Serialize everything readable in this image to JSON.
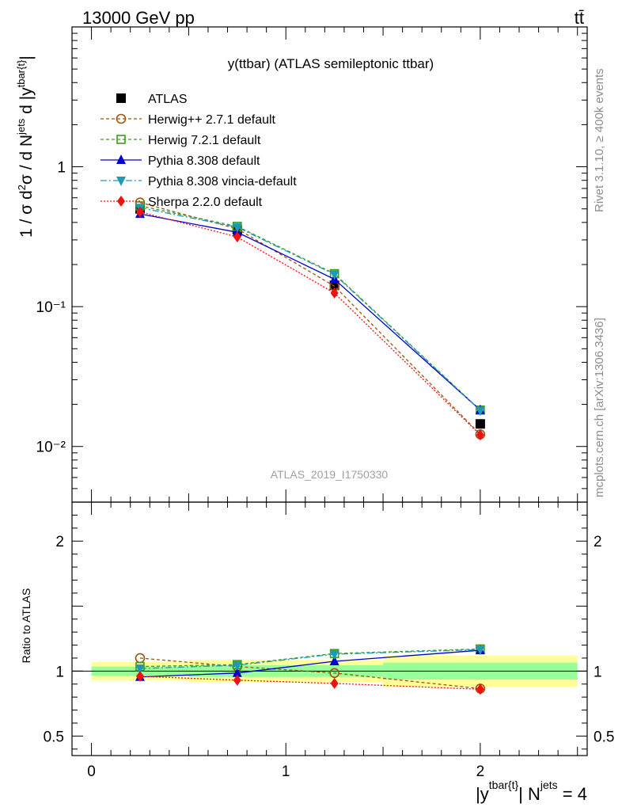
{
  "header": {
    "energy_label": "13000 GeV pp",
    "process_label": "tt̄",
    "plot_title": "y(ttbar) (ATLAS semileptonic ttbar)",
    "side_rivet": "Rivet 3.1.10, ≥ 400k events",
    "side_mcplots": "mcplots.cern.ch [arXiv:1306.3436]",
    "analysis_id": "ATLAS_2019_I1750330"
  },
  "chart_data": [
    {
      "type": "line",
      "scale": "log",
      "ylabel": "1 / σ d²σ / d N^jets d |y^tbar{t}|",
      "ylim": [
        0.004,
        10
      ],
      "xlim": [
        -0.1,
        2.55
      ],
      "y_ticks": [
        {
          "value": 1,
          "label": "1"
        },
        {
          "value": 0.1,
          "label": "10⁻¹"
        },
        {
          "value": 0.01,
          "label": "10⁻²"
        }
      ],
      "x": [
        0.25,
        0.75,
        1.25,
        2.0
      ],
      "legend_position": "top-left",
      "series": [
        {
          "name": "ATLAS",
          "color": "#000000",
          "marker": "square-filled",
          "dash": "none",
          "values": [
            0.5,
            0.355,
            0.142,
            0.0145
          ]
        },
        {
          "name": "Herwig++ 2.7.1 default",
          "color": "#a0520f",
          "marker": "circle-open",
          "dash": "4,3",
          "values": [
            0.555,
            0.36,
            0.14,
            0.0122
          ]
        },
        {
          "name": "Herwig 7.2.1 default",
          "color": "#3e9a1a",
          "marker": "square-open",
          "dash": "4,3",
          "values": [
            0.525,
            0.375,
            0.172,
            0.0182
          ]
        },
        {
          "name": "Pythia 8.308 default",
          "color": "#0000cc",
          "marker": "triangle-up",
          "dash": "none",
          "values": [
            0.46,
            0.34,
            0.157,
            0.0182
          ]
        },
        {
          "name": "Pythia 8.308 vincia-default",
          "color": "#1e9ab5",
          "marker": "triangle-down",
          "dash": "8,3,2,3",
          "values": [
            0.51,
            0.37,
            0.17,
            0.0181
          ]
        },
        {
          "name": "Sherpa 2.2.0 default",
          "color": "#ee1111",
          "marker": "diamond",
          "dash": "2,2",
          "values": [
            0.475,
            0.315,
            0.125,
            0.0121
          ]
        }
      ]
    },
    {
      "type": "line",
      "ylabel": "Ratio to ATLAS",
      "ylim": [
        0.35,
        2.3
      ],
      "xlim": [
        -0.1,
        2.55
      ],
      "xlabel": "|y^tbar{t}| N^jets = 4",
      "y_ticks": [
        {
          "value": 0.5,
          "label": "0.5"
        },
        {
          "value": 1,
          "label": "1"
        },
        {
          "value": 2,
          "label": "2"
        }
      ],
      "x_ticks": [
        {
          "value": 0,
          "label": "0"
        },
        {
          "value": 1,
          "label": "1"
        },
        {
          "value": 2,
          "label": "2"
        }
      ],
      "x": [
        0.25,
        0.75,
        1.25,
        2.0
      ],
      "uncertainty_bands": [
        {
          "x_range": [
            0,
            0.5
          ],
          "stat": [
            0.965,
            1.035
          ],
          "total": [
            0.93,
            1.07
          ]
        },
        {
          "x_range": [
            0.5,
            1.0
          ],
          "stat": [
            0.955,
            1.045
          ],
          "total": [
            0.915,
            1.085
          ]
        },
        {
          "x_range": [
            1.0,
            1.5
          ],
          "stat": [
            0.955,
            1.045
          ],
          "total": [
            0.915,
            1.085
          ]
        },
        {
          "x_range": [
            1.5,
            2.5
          ],
          "stat": [
            0.935,
            1.065
          ],
          "total": [
            0.88,
            1.12
          ]
        }
      ],
      "series": [
        {
          "name": "Herwig++ 2.7.1 default",
          "values": [
            1.1,
            1.035,
            0.985,
            0.865
          ]
        },
        {
          "name": "Herwig 7.2.1 default",
          "values": [
            1.035,
            1.05,
            1.135,
            1.17
          ]
        },
        {
          "name": "Pythia 8.308 default",
          "values": [
            0.955,
            0.985,
            1.075,
            1.16
          ]
        },
        {
          "name": "Pythia 8.308 vincia-default",
          "values": [
            1.02,
            1.045,
            1.13,
            1.165
          ]
        },
        {
          "name": "Sherpa 2.2.0 default",
          "values": [
            0.96,
            0.93,
            0.905,
            0.86
          ]
        }
      ]
    }
  ]
}
